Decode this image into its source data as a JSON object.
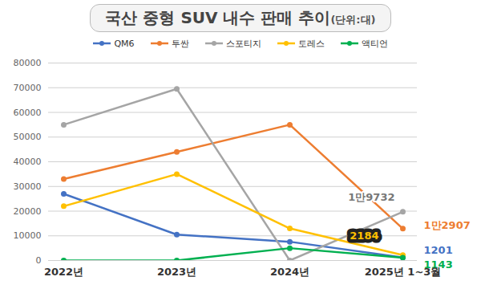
{
  "chart_data": {
    "type": "line",
    "title": "국산 중형 SUV 내수 판매 추이",
    "subtitle": "(단위:대)",
    "categories": [
      "2022년",
      "2023년",
      "2024년",
      "2025년 1~3월"
    ],
    "series": [
      {
        "name": "QM6",
        "color": "#4472c4",
        "values": [
          27000,
          10500,
          7600,
          1201
        ],
        "value_labels": [
          null,
          null,
          null,
          "1201"
        ]
      },
      {
        "name": "투싼",
        "color": "#ed7d31",
        "values": [
          33000,
          44000,
          55000,
          12907
        ],
        "value_labels": [
          null,
          null,
          null,
          "1만2907"
        ]
      },
      {
        "name": "스포티지",
        "color": "#a5a5a5",
        "values": [
          55000,
          69500,
          0,
          19732
        ],
        "value_labels": [
          null,
          null,
          null,
          "1만9732"
        ]
      },
      {
        "name": "토레스",
        "color": "#ffc000",
        "values": [
          22000,
          35000,
          13000,
          2184
        ],
        "value_labels": [
          null,
          null,
          null,
          "2184"
        ]
      },
      {
        "name": "액티언",
        "color": "#00b050",
        "values": [
          0,
          0,
          5000,
          1143
        ],
        "value_labels": [
          null,
          null,
          null,
          "1143"
        ]
      }
    ],
    "ylim": [
      0,
      80000
    ],
    "yticks": [
      0,
      10000,
      20000,
      30000,
      40000,
      50000,
      60000,
      70000,
      80000
    ],
    "grid": true,
    "legend": "top",
    "marker": "circle",
    "data_labels": true
  }
}
